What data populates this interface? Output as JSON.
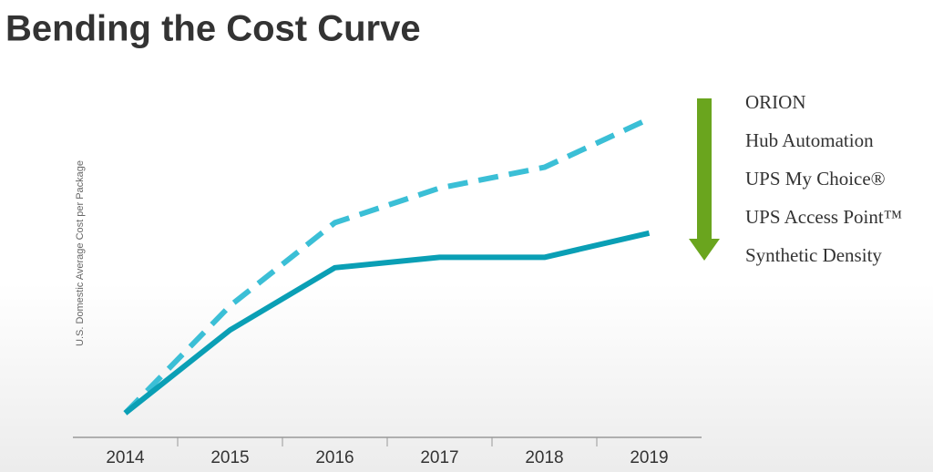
{
  "chart_data": {
    "type": "line",
    "title": "Bending the Cost Curve",
    "y_label": "U.S. Domestic Average Cost per Package",
    "categories": [
      "2014",
      "2015",
      "2016",
      "2017",
      "2018",
      "2019"
    ],
    "series": [
      {
        "color": "#3bbfd6",
        "dashed": true,
        "values": [
          7,
          38,
          62,
          72,
          78,
          92
        ]
      },
      {
        "color": "#0a9fb5",
        "dashed": false,
        "values": [
          7,
          31,
          49,
          52,
          52,
          59
        ]
      }
    ],
    "ylim": [
      0,
      100
    ],
    "annotations": [
      "ORION",
      "Hub Automation",
      "UPS My Choice®",
      "UPS Access Point™",
      "Synthetic Density"
    ],
    "arrow_color": "#6aa51e"
  }
}
